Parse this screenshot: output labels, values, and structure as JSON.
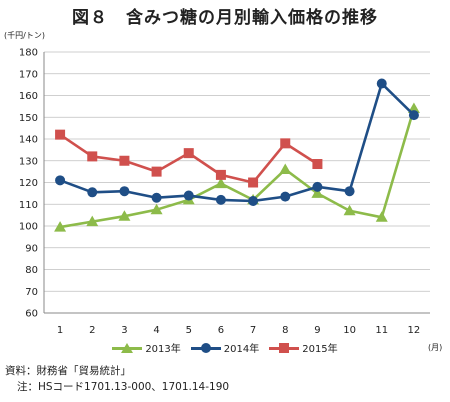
{
  "title": "図８　含みつ糖の月別輸入価格の推移",
  "notes": {
    "source": "資料：財務省「貿易統計」",
    "note": "注：HSコード1701.13-000、1701.14-190"
  },
  "colors": {
    "s2013": "#8dbb4a",
    "s2014": "#1f4e86",
    "s2015": "#d0504d",
    "grid": "#bfbfbf",
    "axis": "#8a8a8a"
  },
  "chart_data": {
    "type": "line",
    "title": "図８　含みつ糖の月別輸入価格の推移",
    "xlabel": "(月)",
    "ylabel": "(千円/トン)",
    "ylim": [
      60,
      180
    ],
    "ystep": 10,
    "grid": true,
    "legend_position": "bottom",
    "categories": [
      "1",
      "2",
      "3",
      "4",
      "5",
      "6",
      "7",
      "8",
      "9",
      "10",
      "11",
      "12"
    ],
    "series": [
      {
        "name": "2013年",
        "marker": "triangle",
        "color": "#8dbb4a",
        "values": [
          99.5,
          102,
          104.5,
          107.5,
          112,
          119.5,
          112,
          126,
          115,
          107,
          104,
          154
        ]
      },
      {
        "name": "2014年",
        "marker": "circle",
        "color": "#1f4e86",
        "values": [
          121,
          115.5,
          116,
          113,
          114,
          112,
          111.5,
          113.5,
          118,
          116,
          165.5,
          151
        ]
      },
      {
        "name": "2015年",
        "marker": "square",
        "color": "#d0504d",
        "values": [
          142,
          132,
          130,
          125,
          133.5,
          123.5,
          120,
          138,
          128.5,
          null,
          null,
          null
        ]
      }
    ]
  }
}
